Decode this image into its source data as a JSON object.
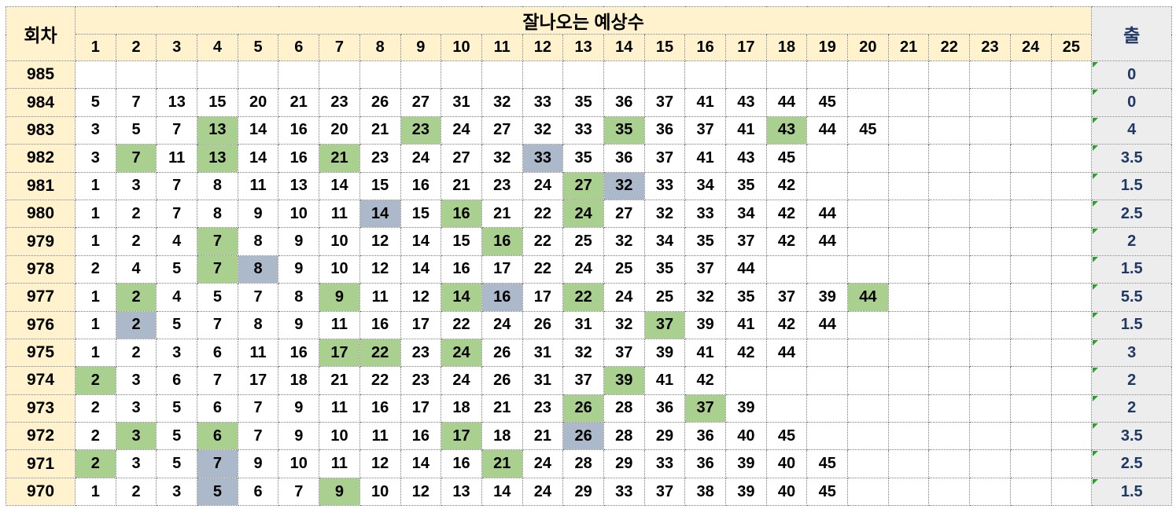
{
  "table": {
    "title": "잘나오는 예상수",
    "round_header": "회차",
    "out_header": "출",
    "columns": [
      "1",
      "2",
      "3",
      "4",
      "5",
      "6",
      "7",
      "8",
      "9",
      "10",
      "11",
      "12",
      "13",
      "14",
      "15",
      "16",
      "17",
      "18",
      "19",
      "20",
      "21",
      "22",
      "23",
      "24",
      "25"
    ],
    "rows": [
      {
        "round": "985",
        "out": "0",
        "numbers": [],
        "green": [],
        "gray": []
      },
      {
        "round": "984",
        "out": "0",
        "numbers": [
          5,
          7,
          13,
          15,
          20,
          21,
          23,
          26,
          27,
          31,
          32,
          33,
          35,
          36,
          37,
          41,
          43,
          44,
          45
        ],
        "green": [],
        "gray": []
      },
      {
        "round": "983",
        "out": "4",
        "numbers": [
          3,
          5,
          7,
          13,
          14,
          16,
          20,
          21,
          23,
          24,
          27,
          32,
          33,
          35,
          36,
          37,
          41,
          43,
          44,
          45
        ],
        "green": [
          13,
          23,
          35,
          43
        ],
        "gray": []
      },
      {
        "round": "982",
        "out": "3.5",
        "numbers": [
          3,
          7,
          11,
          13,
          14,
          16,
          21,
          23,
          24,
          27,
          32,
          33,
          35,
          36,
          37,
          41,
          43,
          45
        ],
        "green": [
          7,
          13,
          21
        ],
        "gray": [
          33
        ]
      },
      {
        "round": "981",
        "out": "1.5",
        "numbers": [
          1,
          3,
          7,
          8,
          11,
          13,
          14,
          15,
          16,
          21,
          23,
          24,
          27,
          32,
          33,
          34,
          35,
          42
        ],
        "green": [
          27
        ],
        "gray": [
          32
        ]
      },
      {
        "round": "980",
        "out": "2.5",
        "numbers": [
          1,
          2,
          7,
          8,
          9,
          10,
          11,
          14,
          15,
          16,
          21,
          22,
          24,
          27,
          32,
          33,
          34,
          42,
          44
        ],
        "green": [
          16,
          24
        ],
        "gray": [
          14
        ]
      },
      {
        "round": "979",
        "out": "2",
        "numbers": [
          1,
          2,
          4,
          7,
          8,
          9,
          10,
          12,
          14,
          15,
          16,
          22,
          25,
          32,
          34,
          35,
          37,
          42,
          44
        ],
        "green": [
          7,
          16
        ],
        "gray": []
      },
      {
        "round": "978",
        "out": "1.5",
        "numbers": [
          2,
          4,
          5,
          7,
          8,
          9,
          10,
          12,
          14,
          16,
          17,
          22,
          24,
          25,
          35,
          37,
          44
        ],
        "green": [
          7
        ],
        "gray": [
          8
        ]
      },
      {
        "round": "977",
        "out": "5.5",
        "numbers": [
          1,
          2,
          4,
          5,
          7,
          8,
          9,
          11,
          12,
          14,
          16,
          17,
          22,
          24,
          25,
          32,
          35,
          37,
          39,
          44
        ],
        "green": [
          2,
          9,
          14,
          22,
          44
        ],
        "gray": [
          16
        ]
      },
      {
        "round": "976",
        "out": "1.5",
        "numbers": [
          1,
          2,
          5,
          7,
          8,
          9,
          11,
          16,
          17,
          22,
          24,
          26,
          31,
          32,
          37,
          39,
          41,
          42,
          44
        ],
        "green": [
          37
        ],
        "gray": [
          2
        ]
      },
      {
        "round": "975",
        "out": "3",
        "numbers": [
          1,
          2,
          3,
          6,
          11,
          16,
          17,
          22,
          23,
          24,
          26,
          31,
          32,
          37,
          39,
          41,
          42,
          44
        ],
        "green": [
          17,
          22,
          24
        ],
        "gray": []
      },
      {
        "round": "974",
        "out": "2",
        "numbers": [
          2,
          3,
          6,
          7,
          17,
          18,
          21,
          22,
          23,
          24,
          26,
          31,
          37,
          39,
          41,
          42
        ],
        "green": [
          2,
          39
        ],
        "gray": []
      },
      {
        "round": "973",
        "out": "2",
        "numbers": [
          2,
          3,
          5,
          6,
          7,
          9,
          11,
          16,
          17,
          18,
          21,
          23,
          26,
          28,
          36,
          37,
          39
        ],
        "green": [
          26,
          37
        ],
        "gray": []
      },
      {
        "round": "972",
        "out": "3.5",
        "numbers": [
          2,
          3,
          5,
          6,
          7,
          9,
          10,
          11,
          16,
          17,
          18,
          21,
          26,
          28,
          29,
          36,
          40,
          45
        ],
        "green": [
          3,
          6,
          17
        ],
        "gray": [
          26
        ]
      },
      {
        "round": "971",
        "out": "2.5",
        "numbers": [
          2,
          3,
          5,
          7,
          9,
          10,
          11,
          12,
          14,
          16,
          21,
          24,
          28,
          29,
          33,
          36,
          39,
          40,
          45
        ],
        "green": [
          2,
          21
        ],
        "gray": [
          7
        ]
      },
      {
        "round": "970",
        "out": "1.5",
        "numbers": [
          1,
          2,
          3,
          5,
          6,
          7,
          9,
          10,
          12,
          13,
          14,
          24,
          29,
          33,
          37,
          38,
          39,
          40,
          45
        ],
        "green": [
          9
        ],
        "gray": [
          5
        ]
      }
    ]
  },
  "colors": {
    "header_bg": "#FFF2CC",
    "out_col_bg": "#EDEDED",
    "green_highlight": "#A9D08E",
    "gray_highlight": "#ACB9CA",
    "out_text": "#1F3864",
    "grid_border": "#7a7a7a",
    "error_indicator_green": "#2E9E2E",
    "text": "#000000"
  }
}
